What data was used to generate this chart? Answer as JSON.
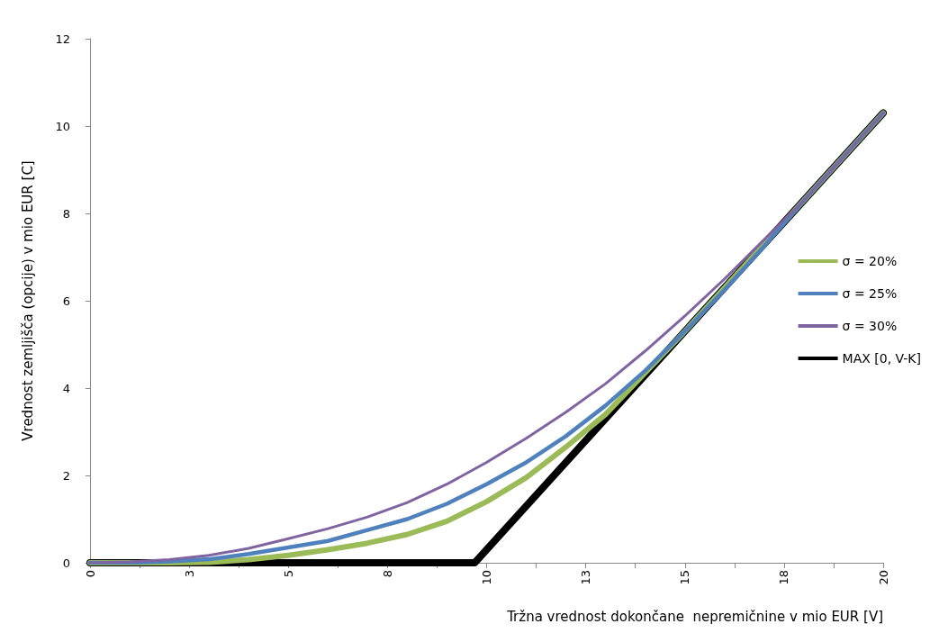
{
  "chart_data": {
    "type": "line",
    "xlabel": "Tržna vrednost dokončane  nepremičnine v mio EUR [V]",
    "ylabel": "Vrednost zemljišča (opcije) v mio EUR [C]",
    "x": [
      0,
      1,
      2,
      3,
      4,
      5,
      6,
      7,
      8,
      9,
      10,
      11,
      12,
      13,
      14,
      15,
      16,
      17,
      18,
      19,
      20
    ],
    "series": [
      {
        "name": "σ = 20%",
        "color": "#9bbb59",
        "values": [
          0,
          0,
          0,
          0.01,
          0.07,
          0.17,
          0.3,
          0.45,
          0.65,
          0.95,
          1.4,
          1.95,
          2.65,
          3.4,
          4.35,
          5.3,
          6.3,
          7.3,
          8.3,
          9.3,
          10.3
        ]
      },
      {
        "name": "σ = 25%",
        "color": "#4f81bd",
        "values": [
          0,
          0,
          0.03,
          0.08,
          0.2,
          0.35,
          0.5,
          0.75,
          1.0,
          1.35,
          1.8,
          2.3,
          2.9,
          3.6,
          4.4,
          5.3,
          6.25,
          7.25,
          8.3,
          9.3,
          10.3
        ]
      },
      {
        "name": "σ = 30%",
        "color": "#8064a2",
        "values": [
          0,
          0.02,
          0.07,
          0.17,
          0.33,
          0.55,
          0.78,
          1.05,
          1.38,
          1.8,
          2.3,
          2.85,
          3.45,
          4.1,
          4.85,
          5.65,
          6.5,
          7.4,
          8.3,
          9.3,
          10.3
        ]
      },
      {
        "name": "MAX [0, V-K]",
        "color": "#000000",
        "x": [
          0,
          9.7,
          20
        ],
        "values": [
          0,
          0,
          10.3
        ]
      }
    ],
    "xlim": [
      0,
      20
    ],
    "xticks": [
      0,
      {
        "value": 1.25,
        "label": null
      },
      {
        "value": 2.5,
        "label": "3"
      },
      {
        "value": 3.75,
        "label": null
      },
      5,
      {
        "value": 6.25,
        "label": null
      },
      {
        "value": 7.5,
        "label": "8"
      },
      {
        "value": 8.75,
        "label": null
      },
      10,
      {
        "value": 11.25,
        "label": null
      },
      {
        "value": 12.5,
        "label": "13"
      },
      {
        "value": 13.75,
        "label": null
      },
      15,
      {
        "value": 16.25,
        "label": null
      },
      {
        "value": 17.5,
        "label": "18"
      },
      {
        "value": 18.75,
        "label": null
      },
      20
    ],
    "ylim": [
      0,
      12
    ],
    "yticks": [
      0,
      2,
      4,
      6,
      8,
      10,
      12
    ],
    "grid": false,
    "legend": "right",
    "marker": "none",
    "line_style": "solid"
  }
}
